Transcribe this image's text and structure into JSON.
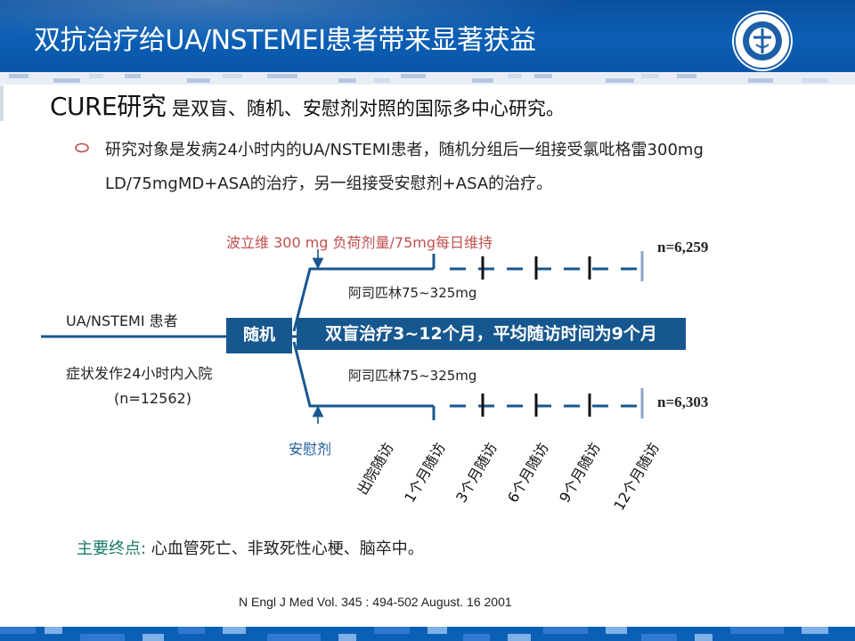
{
  "header": {
    "title": "双抗治疗给UA/NSTEMEI患者带来显著获益",
    "logo_label": "MINISTRY OF HEALTH OF CHINA"
  },
  "heading": {
    "title": "CURE研究",
    "subtitle": " 是双盲、随机、安慰剂对照的国际多中心研究。"
  },
  "bullet": {
    "text": "研究对象是发病24小时内的UA/NSTEMI患者，随机分组后一组接受氯吡格雷300mg LD/75mgMD+ASA的治疗，另一组接受安慰剂+ASA的治疗。"
  },
  "diagram": {
    "clopidogrel_label": "波立维 300 mg 负荷剂量/75mg每日维持",
    "aspirin_top": "阿司匹林75~325mg",
    "aspirin_bottom": "阿司匹林75~325mg",
    "n_top": "n=6,259",
    "n_bottom": "n=6,303",
    "patients_label": "UA/NSTEMI 患者",
    "admission_label": "症状发作24小时内入院",
    "n_total": "(n=12562)",
    "randomize": "随机",
    "treatment": "双盲治疗3~12个月，平均随访时间为9个月",
    "placebo": "安慰剂",
    "followups": [
      "出院随访",
      "1个月随访",
      "3个月随访",
      "6个月随访",
      "9个月随访",
      "12个月随访"
    ]
  },
  "endpoint": {
    "label": "主要终点: ",
    "value": "心血管死亡、非致死性心梗、脑卒中。"
  },
  "citation": "N Engl J Med  Vol. 345 : 494-502 August. 16 2001",
  "colors": {
    "header_blue": "#0b5fb5",
    "box_blue": "#17578f",
    "red_label": "#c0504d",
    "endpoint_label": "#1b7a6c"
  }
}
